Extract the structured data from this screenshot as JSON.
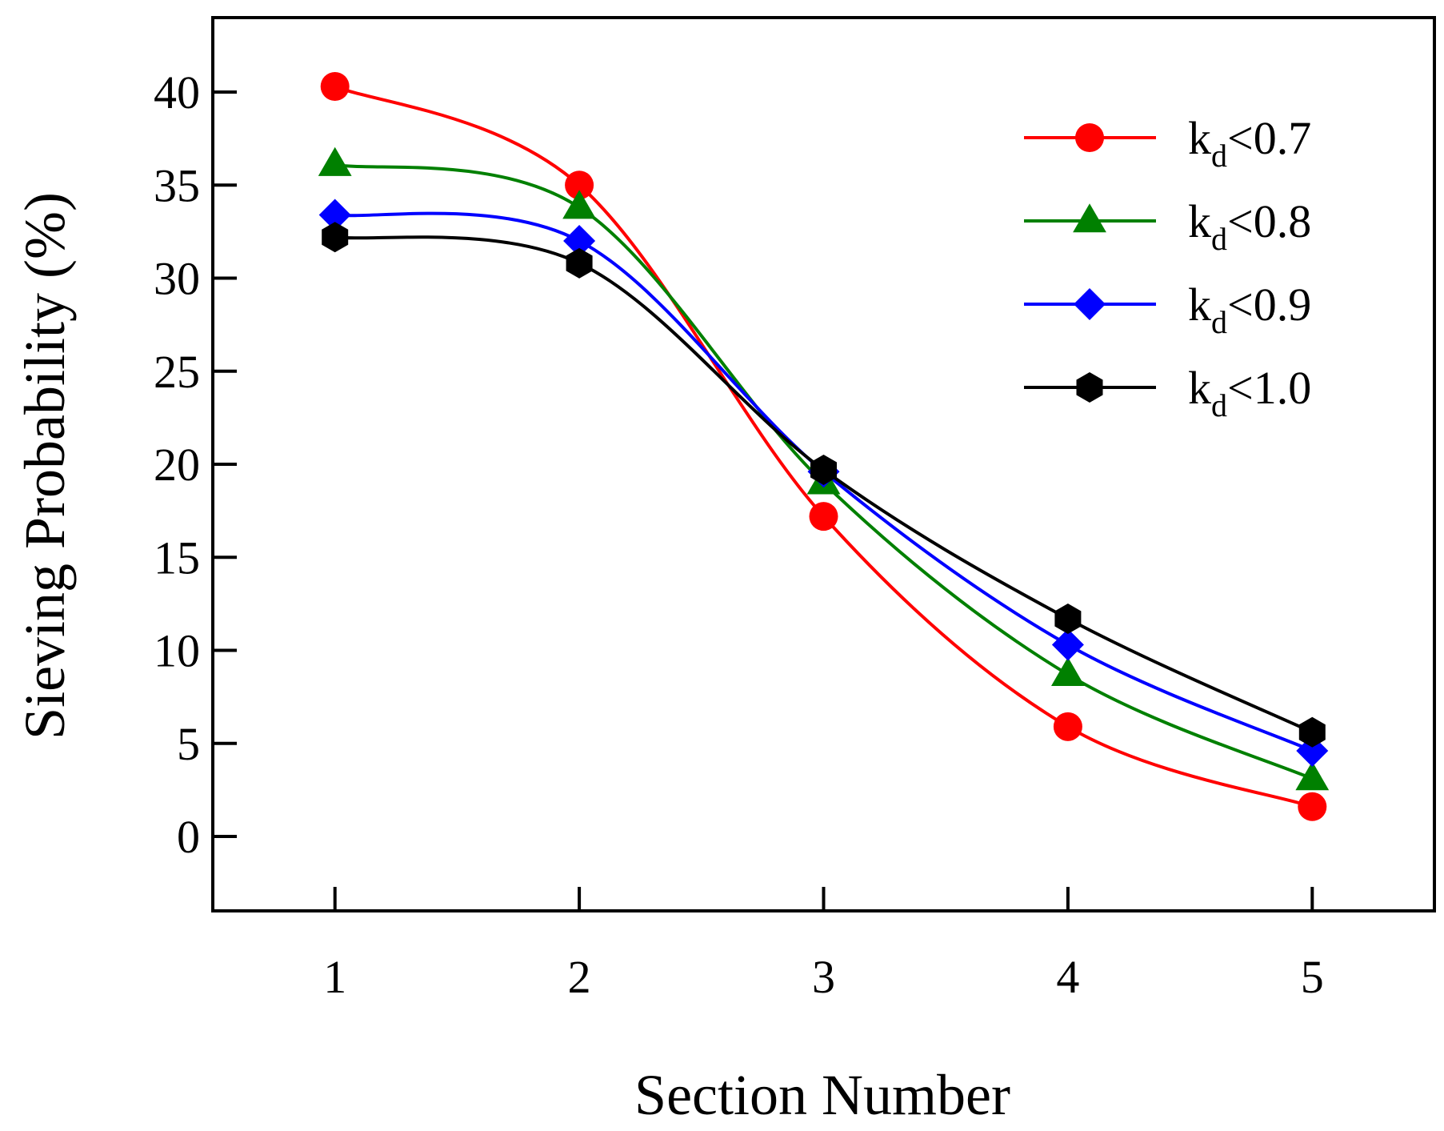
{
  "chart_data": {
    "type": "line",
    "title": "",
    "xlabel": "Section Number",
    "ylabel": "Sieving Probability (%)",
    "x": [
      1,
      2,
      3,
      4,
      5
    ],
    "x_ticks": [
      "1",
      "2",
      "3",
      "4",
      "5"
    ],
    "y_ticks": [
      "0",
      "5",
      "10",
      "15",
      "20",
      "25",
      "30",
      "35",
      "40"
    ],
    "xlim": [
      0.5,
      5.5
    ],
    "ylim": [
      -4,
      44
    ],
    "grid": false,
    "legend_position": "top-right",
    "series": [
      {
        "name_main": "k",
        "name_sub": "d",
        "name_rest": "<0.7",
        "color": "#ff0000",
        "marker": "circle",
        "values": [
          40.3,
          35.0,
          17.2,
          5.9,
          1.6
        ]
      },
      {
        "name_main": "k",
        "name_sub": "d",
        "name_rest": "<0.8",
        "color": "#008000",
        "marker": "triangle",
        "values": [
          36.1,
          33.8,
          19.0,
          8.7,
          3.1
        ]
      },
      {
        "name_main": "k",
        "name_sub": "d",
        "name_rest": "<0.9",
        "color": "#0000ff",
        "marker": "diamond",
        "values": [
          33.4,
          32.0,
          19.6,
          10.3,
          4.6
        ]
      },
      {
        "name_main": "k",
        "name_sub": "d",
        "name_rest": "<1.0",
        "color": "#000000",
        "marker": "hexagon",
        "values": [
          32.2,
          30.8,
          19.7,
          11.7,
          5.6
        ]
      }
    ]
  }
}
